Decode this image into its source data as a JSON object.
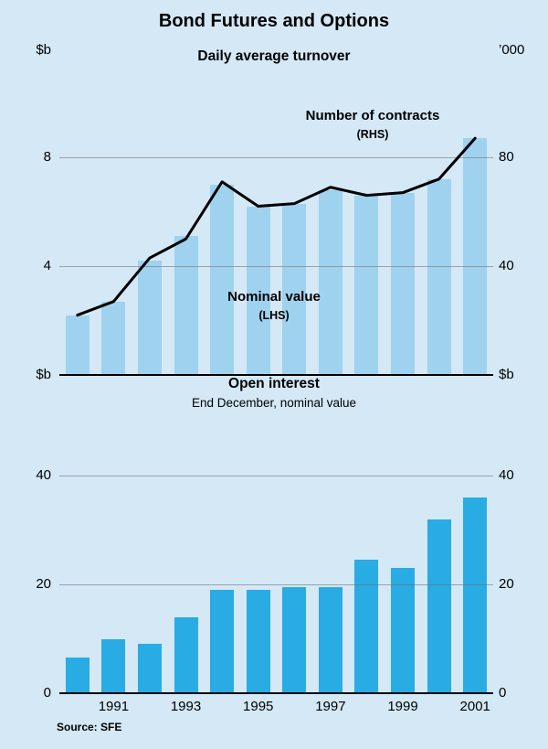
{
  "title": "Bond Futures and Options",
  "source": "Source: SFE",
  "top_panel": {
    "title": "Daily average turnover",
    "left_unit": "$b",
    "right_unit": "’000",
    "line_label": "Number of contracts",
    "line_label_sub": "(RHS)",
    "bar_label": "Nominal value",
    "bar_label_sub": "(LHS)"
  },
  "bottom_panel": {
    "title": "Open interest",
    "subtitle": "End December, nominal value",
    "left_unit": "$b",
    "right_unit": "$b"
  },
  "colors": {
    "background": "#d4e8f6",
    "turnover_bar": "#9fd2ef",
    "open_interest_bar": "#29abe4",
    "line": "#000000",
    "gridline": "#6b6b6b",
    "text": "#000000"
  },
  "chart_data": [
    {
      "type": "bar+line",
      "title": "Daily average turnover",
      "x": [
        1990,
        1991,
        1992,
        1993,
        1994,
        1995,
        1996,
        1997,
        1998,
        1999,
        2000,
        2001
      ],
      "series": [
        {
          "name": "Nominal value",
          "plot": "bar",
          "axis": "LHS",
          "unit": "$b",
          "values": [
            2.2,
            2.7,
            4.2,
            5.1,
            7.0,
            6.2,
            6.3,
            6.8,
            6.6,
            6.7,
            7.2,
            8.7
          ]
        },
        {
          "name": "Number of contracts",
          "plot": "line",
          "axis": "RHS",
          "unit": "'000",
          "values": [
            22,
            27,
            43,
            50,
            71,
            62,
            63,
            69,
            66,
            67,
            72,
            87
          ]
        }
      ],
      "left_axis": {
        "unit": "$b",
        "ticks": [
          4,
          8
        ],
        "range": [
          0,
          11.4
        ]
      },
      "right_axis": {
        "unit": "'000",
        "ticks": [
          40,
          80
        ],
        "range": [
          0,
          114
        ]
      },
      "grid": true,
      "legend_position": "annotations-on-plot"
    },
    {
      "type": "bar",
      "title": "Open interest",
      "subtitle": "End December, nominal value",
      "x": [
        1990,
        1991,
        1992,
        1993,
        1994,
        1995,
        1996,
        1997,
        1998,
        1999,
        2000,
        2001
      ],
      "values": [
        6.5,
        10,
        9,
        14,
        19,
        19,
        19.5,
        19.5,
        24.5,
        23,
        32,
        36
      ],
      "left_axis": {
        "unit": "$b",
        "ticks": [
          0,
          20,
          40
        ],
        "range": [
          0,
          58
        ]
      },
      "right_axis": {
        "unit": "$b",
        "ticks": [
          0,
          20,
          40
        ],
        "range": [
          0,
          58
        ]
      },
      "grid": true,
      "xticklabels": [
        "1991",
        "1993",
        "1995",
        "1997",
        "1999",
        "2001"
      ]
    }
  ]
}
